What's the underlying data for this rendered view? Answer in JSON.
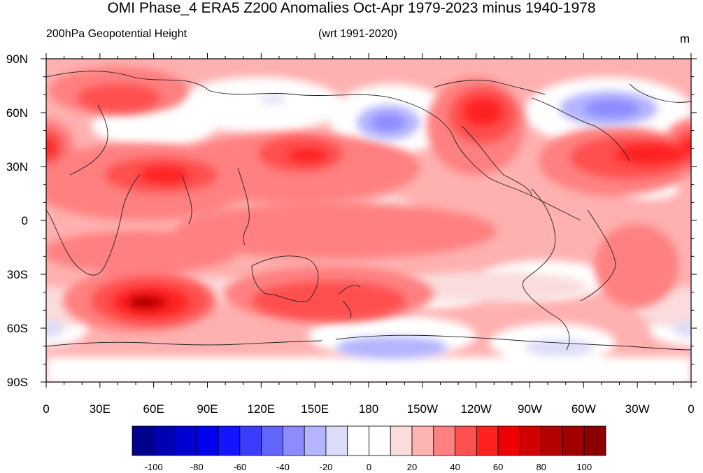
{
  "title": "OMI Phase_4 ERA5 Z200 Anomalies Oct-Apr 1979-2023 minus 1940-1978",
  "left_string": "200hPa Geopotential Height",
  "center_string": "(wrt 1991-2020)",
  "units": "m",
  "lat_labels": [
    "90N",
    "60N",
    "30N",
    "0",
    "30S",
    "60S",
    "90S"
  ],
  "lon_labels": [
    "0",
    "30E",
    "60E",
    "90E",
    "120E",
    "150E",
    "180",
    "150W",
    "120W",
    "90W",
    "60W",
    "30W",
    "0"
  ],
  "colorbar": {
    "labels": [
      "-100",
      "-80",
      "-60",
      "-40",
      "-20",
      "0",
      "20",
      "40",
      "60",
      "80",
      "100"
    ],
    "colors": [
      "#00008c",
      "#0000b4",
      "#0000d2",
      "#0000f0",
      "#1414ff",
      "#3c3cff",
      "#6464ff",
      "#8c8cff",
      "#b4b4ff",
      "#dcdcf8",
      "#ffffff",
      "#ffffff",
      "#fadcdc",
      "#ffb4b4",
      "#ff8080",
      "#ff5050",
      "#ff2020",
      "#f00000",
      "#d20000",
      "#b40000",
      "#a00000",
      "#8c0000"
    ]
  },
  "colors": {
    "background_light_red": "#ffb0b0",
    "strong_red": "#ff3030",
    "blue_anomaly": "#9a9aff"
  }
}
